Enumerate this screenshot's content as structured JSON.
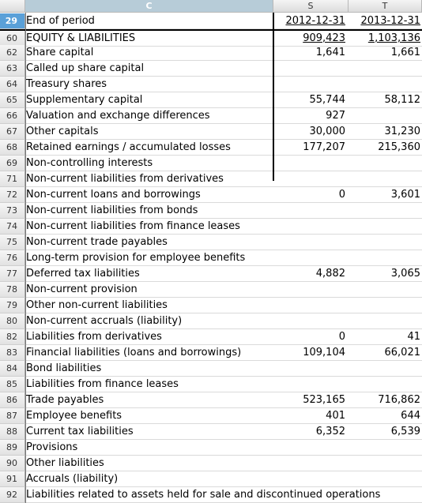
{
  "columns": {
    "corner": "",
    "C": "C",
    "S": "S",
    "T": "T"
  },
  "rows": [
    {
      "num": "29",
      "label": "End of period",
      "s": "2012-12-31",
      "t": "2013-12-31",
      "selected": true
    },
    {
      "num": "60",
      "label": "EQUITY & LIABILITIES",
      "s": "909,423",
      "t": "1,103,136"
    },
    {
      "num": "62",
      "label": "Share capital",
      "s": "1,641",
      "t": "1,661"
    },
    {
      "num": "63",
      "label": "Called up share capital",
      "s": "",
      "t": ""
    },
    {
      "num": "64",
      "label": "Treasury shares",
      "s": "",
      "t": ""
    },
    {
      "num": "65",
      "label": "Supplementary capital",
      "s": "55,744",
      "t": "58,112"
    },
    {
      "num": "66",
      "label": "Valuation and exchange differences",
      "s": "927",
      "t": ""
    },
    {
      "num": "67",
      "label": "Other capitals",
      "s": "30,000",
      "t": "31,230"
    },
    {
      "num": "68",
      "label": "Retained earnings / accumulated losses",
      "s": "177,207",
      "t": "215,360"
    },
    {
      "num": "69",
      "label": "Non-controlling interests",
      "s": "",
      "t": ""
    },
    {
      "num": "71",
      "label": "Non-current liabilities from derivatives",
      "s": "",
      "t": ""
    },
    {
      "num": "72",
      "label": "Non-current loans and borrowings",
      "s": "0",
      "t": "3,601"
    },
    {
      "num": "73",
      "label": "Non-current liabilities from bonds",
      "s": "",
      "t": ""
    },
    {
      "num": "74",
      "label": "Non-current liabilities from finance leases",
      "s": "",
      "t": ""
    },
    {
      "num": "75",
      "label": "Non-current trade payables",
      "s": "",
      "t": ""
    },
    {
      "num": "76",
      "label": "Long-term provision for employee benefits",
      "s": "",
      "t": ""
    },
    {
      "num": "77",
      "label": "Deferred tax liabilities",
      "s": "4,882",
      "t": "3,065"
    },
    {
      "num": "78",
      "label": "Non-current provision",
      "s": "",
      "t": ""
    },
    {
      "num": "79",
      "label": "Other non-current liabilities",
      "s": "",
      "t": ""
    },
    {
      "num": "80",
      "label": "Non-current accruals (liability)",
      "s": "",
      "t": ""
    },
    {
      "num": "82",
      "label": "Liabilities from derivatives",
      "s": "0",
      "t": "41"
    },
    {
      "num": "83",
      "label": "Financial liabilities (loans and borrowings)",
      "s": "109,104",
      "t": "66,021"
    },
    {
      "num": "84",
      "label": "Bond liabilities",
      "s": "",
      "t": ""
    },
    {
      "num": "85",
      "label": "Liabilities from finance leases",
      "s": "",
      "t": ""
    },
    {
      "num": "86",
      "label": "Trade payables",
      "s": "523,165",
      "t": "716,862"
    },
    {
      "num": "87",
      "label": "Employee benefits",
      "s": "401",
      "t": "644"
    },
    {
      "num": "88",
      "label": "Current tax liabilities",
      "s": "6,352",
      "t": "6,539"
    },
    {
      "num": "89",
      "label": "Provisions",
      "s": "",
      "t": ""
    },
    {
      "num": "90",
      "label": "Other liabilities",
      "s": "",
      "t": ""
    },
    {
      "num": "91",
      "label": "Accruals (liability)",
      "s": "",
      "t": ""
    },
    {
      "num": "92",
      "label": "Liabilities related to assets held for sale and discontinued operations",
      "s": "",
      "t": ""
    }
  ]
}
